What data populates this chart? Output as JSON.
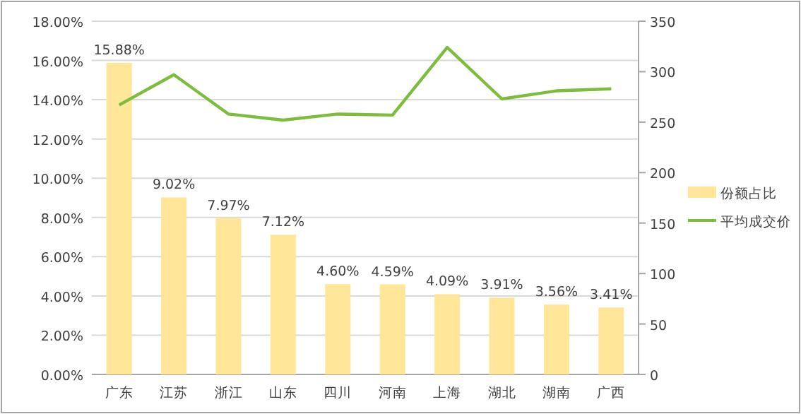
{
  "chart_data": {
    "type": "bar",
    "categories": [
      "广东",
      "江苏",
      "浙江",
      "山东",
      "四川",
      "河南",
      "上海",
      "湖北",
      "湖南",
      "广西"
    ],
    "series": [
      {
        "name": "份额占比",
        "color": "#ffe699",
        "values": [
          15.88,
          9.02,
          7.97,
          7.12,
          4.6,
          4.59,
          4.09,
          3.91,
          3.56,
          3.41
        ],
        "value_labels": [
          "15.88%",
          "9.02%",
          "7.97%",
          "7.12%",
          "4.60%",
          "4.59%",
          "4.09%",
          "3.91%",
          "3.56%",
          "3.41%"
        ]
      },
      {
        "name": "平均成交价",
        "type": "line",
        "axis": "y2",
        "color": "#7cbd3c",
        "values": [
          267,
          297,
          258,
          252,
          258,
          257,
          324,
          273,
          281,
          283
        ]
      }
    ],
    "ylim": [
      0,
      18
    ],
    "yticks": [
      {
        "value": 0,
        "label": "0.00%"
      },
      {
        "value": 2,
        "label": "2.00%"
      },
      {
        "value": 4,
        "label": "4.00%"
      },
      {
        "value": 6,
        "label": "6.00%"
      },
      {
        "value": 8,
        "label": "8.00%"
      },
      {
        "value": 10,
        "label": "10.00%"
      },
      {
        "value": 12,
        "label": "12.00%"
      },
      {
        "value": 14,
        "label": "14.00%"
      },
      {
        "value": 16,
        "label": "16.00%"
      },
      {
        "value": 18,
        "label": "18.00%"
      }
    ],
    "y2lim": [
      0,
      350
    ],
    "y2ticks": [
      0,
      50,
      100,
      150,
      200,
      250,
      300,
      350
    ],
    "grid": "y",
    "legend": "right",
    "marker": "none",
    "line_style": "solid"
  }
}
